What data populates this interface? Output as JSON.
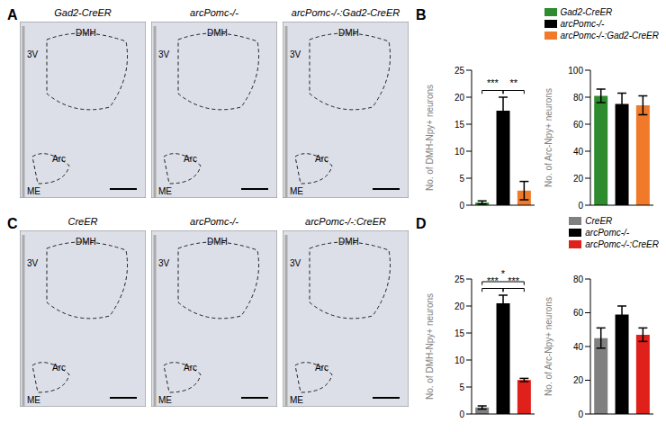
{
  "panel_labels": [
    "A",
    "B",
    "C",
    "D"
  ],
  "images": [
    {
      "panel": "A",
      "title": "Gad2-CreER",
      "labels": [
        "DMH",
        "3V",
        "Arc",
        "ME"
      ]
    },
    {
      "panel": "A",
      "title": "arcPomc-/-",
      "labels": [
        "DMH",
        "3V",
        "Arc",
        "ME"
      ]
    },
    {
      "panel": "A",
      "title": "arcPomc-/-:Gad2-CreER",
      "labels": [
        "DMH",
        "3V",
        "Arc",
        "ME"
      ]
    },
    {
      "panel": "C",
      "title": "CreER",
      "labels": [
        "DMH",
        "3V",
        "Arc",
        "ME"
      ]
    },
    {
      "panel": "C",
      "title": "arcPomc-/-",
      "labels": [
        "DMH",
        "3V",
        "Arc",
        "ME"
      ]
    },
    {
      "panel": "C",
      "title": "arcPomc-/-:CreER",
      "labels": [
        "DMH",
        "3V",
        "Arc",
        "ME"
      ]
    }
  ],
  "chart_data": [
    {
      "panel": "B",
      "type": "bar",
      "ylabel": "No. of DMH-Npy+ neurons",
      "categories": [
        "Gad2-CreER",
        "arcPomc-/-",
        "arcPomc-/-:Gad2-CreER"
      ],
      "values": [
        0.5,
        17.5,
        2.7
      ],
      "errors": [
        0.3,
        2.5,
        1.7
      ],
      "colors": [
        "#2e8b2e",
        "#000000",
        "#f07a2a"
      ],
      "ylim": [
        0,
        25
      ],
      "yticks": [
        0,
        5,
        10,
        15,
        20,
        25
      ],
      "tick_labels": "y",
      "significance": [
        {
          "from": 0,
          "to": 1,
          "label": "***"
        },
        {
          "from": 1,
          "to": 2,
          "label": "**"
        }
      ]
    },
    {
      "panel": "B",
      "type": "bar",
      "ylabel": "No. of Arc-Npy+ neurons",
      "categories": [
        "Gad2-CreER",
        "arcPomc-/-",
        "arcPomc-/-:Gad2-CreER"
      ],
      "values": [
        81,
        75,
        74
      ],
      "errors": [
        5,
        8,
        7
      ],
      "colors": [
        "#2e8b2e",
        "#000000",
        "#f07a2a"
      ],
      "ylim": [
        0,
        100
      ],
      "yticks": [
        0,
        20,
        40,
        60,
        80,
        100
      ],
      "tick_labels": "y",
      "legend": "top-right"
    },
    {
      "panel": "D",
      "type": "bar",
      "ylabel": "No. of DMH-Npy+ neurons",
      "categories": [
        "CreER",
        "arcPomc-/-",
        "arcPomc-/-:CreER"
      ],
      "values": [
        1.2,
        20.5,
        6.3
      ],
      "errors": [
        0.3,
        1.5,
        0.3
      ],
      "colors": [
        "#808080",
        "#000000",
        "#e0201b"
      ],
      "ylim": [
        0,
        25
      ],
      "yticks": [
        0,
        5,
        10,
        15,
        20,
        25
      ],
      "tick_labels": "y",
      "significance": [
        {
          "from": 0,
          "to": 1,
          "label": "***"
        },
        {
          "from": 1,
          "to": 2,
          "label": "***"
        },
        {
          "from": 0,
          "to": 2,
          "label": "*"
        }
      ]
    },
    {
      "panel": "D",
      "type": "bar",
      "ylabel": "No. of Arc-Npy+ neurons",
      "categories": [
        "CreER",
        "arcPomc-/-",
        "arcPomc-/-:CreER"
      ],
      "values": [
        45,
        59,
        47
      ],
      "errors": [
        6,
        5,
        4
      ],
      "colors": [
        "#808080",
        "#000000",
        "#e0201b"
      ],
      "ylim": [
        0,
        80
      ],
      "yticks": [
        0,
        20,
        40,
        60,
        80
      ],
      "tick_labels": "y",
      "legend": "top-right"
    }
  ]
}
